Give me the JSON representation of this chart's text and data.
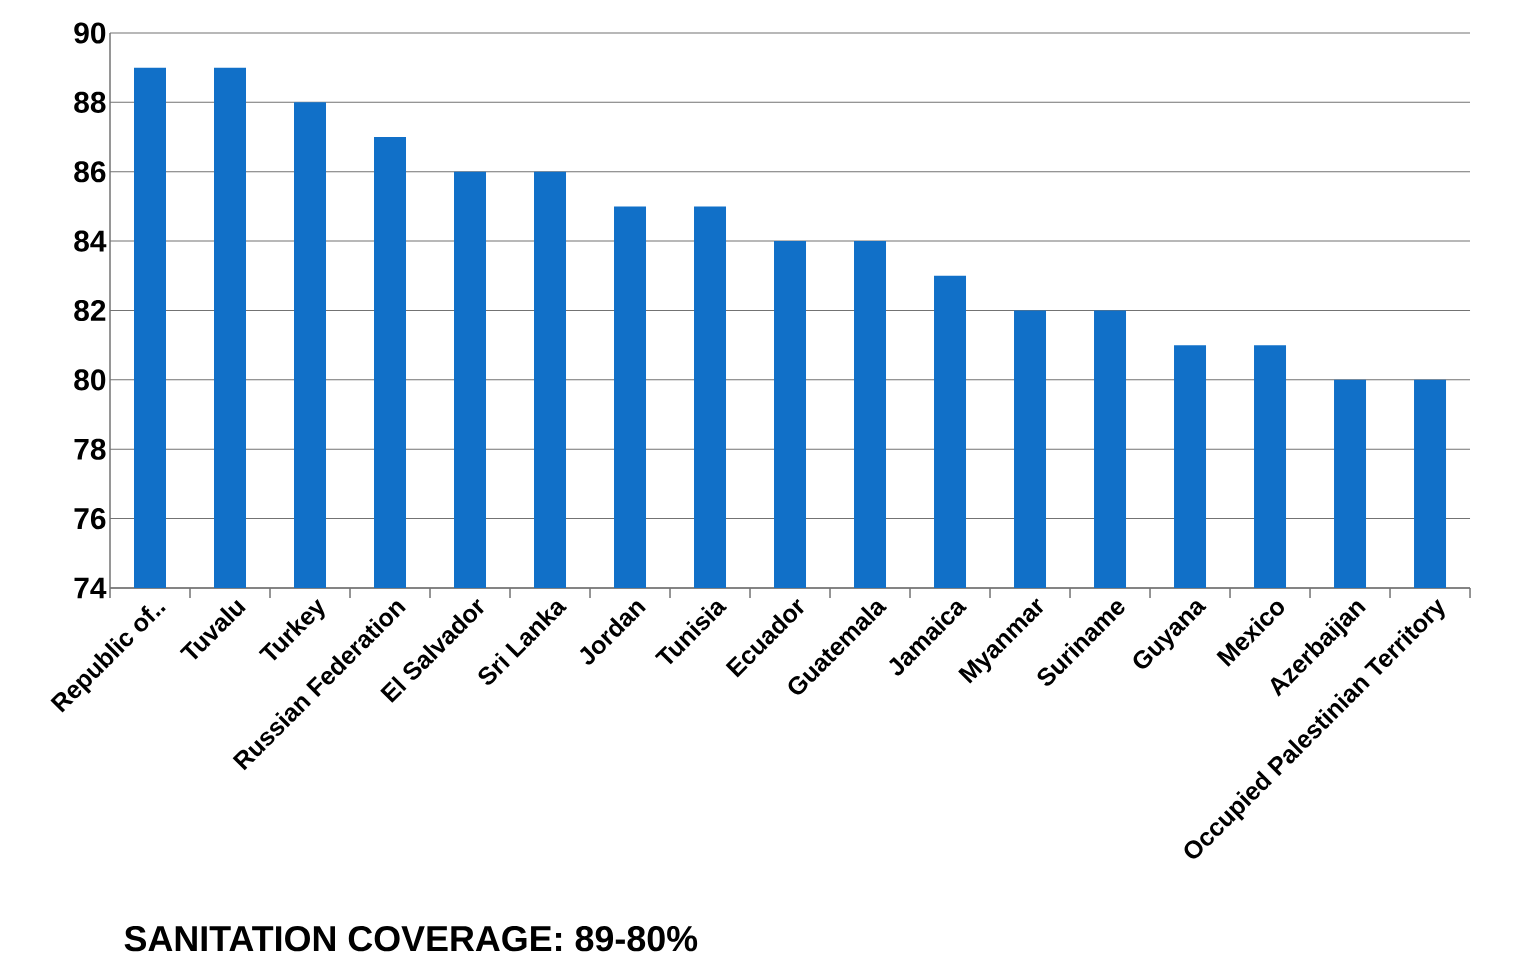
{
  "chart_data": {
    "type": "bar",
    "title": "SANITATION COVERAGE: 89-80%",
    "categories": [
      "Republic of..",
      "Tuvalu",
      "Turkey",
      "Russian Federation",
      "El Salvador",
      "Sri Lanka",
      "Jordan",
      "Tunisia",
      "Ecuador",
      "Guatemala",
      "Jamaica",
      "Myanmar",
      "Suriname",
      "Guyana",
      "Mexico",
      "Azerbaijan",
      "Occupied Palestinian Territory"
    ],
    "values": [
      89,
      89,
      88,
      87,
      86,
      86,
      85,
      85,
      84,
      84,
      83,
      82,
      82,
      81,
      81,
      80,
      80
    ],
    "color": "#1170c8",
    "ylim": [
      74,
      90
    ],
    "yticks": [
      74,
      76,
      78,
      80,
      82,
      84,
      86,
      88,
      90
    ],
    "grid": "y"
  }
}
